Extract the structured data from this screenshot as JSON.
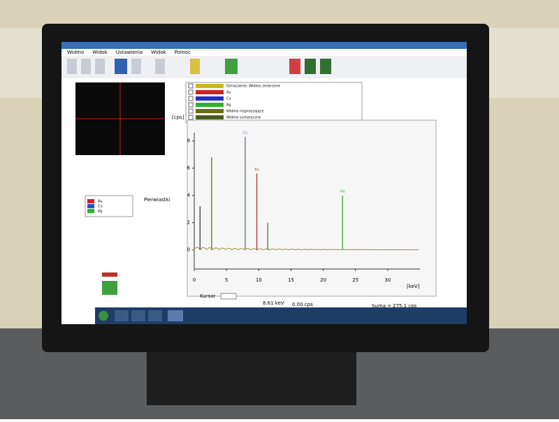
{
  "menu": [
    "Widmo",
    "Widok",
    "Ustawienia",
    "Widok",
    "Pomoc"
  ],
  "legend": [
    {
      "name": "Oznaczenie: Widmo zmierzone",
      "color": "#c8b820"
    },
    {
      "name": "Au",
      "color": "#d02020"
    },
    {
      "name": "Cu",
      "color": "#2030c8"
    },
    {
      "name": "Ag",
      "color": "#30b030"
    },
    {
      "name": "Widmo rozpraszające",
      "color": "#6a6a10"
    },
    {
      "name": "Widmo sumaryczne",
      "color": "#4a5a20"
    }
  ],
  "side_list": {
    "rows": [
      "Au",
      "Cu",
      "Ag"
    ],
    "colors": [
      "#d02020",
      "#3050c0",
      "#30b030"
    ]
  },
  "side_label": "Pierwiastki",
  "spectrum": {
    "type": "spectrum",
    "y_label": "[cps]",
    "x_label": "[keV]",
    "xlim": [
      0,
      35
    ],
    "xticks": [
      0,
      5,
      10,
      15,
      20,
      25,
      30
    ],
    "ylim": [
      -1.4,
      8.6
    ],
    "yticks": [
      0,
      2,
      4,
      6,
      8
    ],
    "peaks": {
      "x": [
        0.9,
        2.7,
        7.9,
        9.7,
        11.4,
        23.0
      ],
      "values": [
        3.2,
        6.8,
        8.3,
        5.6,
        2.0,
        4.0
      ],
      "labels": [
        null,
        null,
        "Cu",
        "Au",
        null,
        "Ag"
      ],
      "colors": [
        "#505050",
        "#6a8a20",
        "#7080a0",
        "#c04040",
        "#709030",
        "#50b050"
      ]
    }
  },
  "cursor": {
    "label": "Kursor",
    "energy": "8.61 keV",
    "counts": "0.00 cps"
  },
  "summary": {
    "label": "Suma =",
    "value": "275.1 cps"
  }
}
